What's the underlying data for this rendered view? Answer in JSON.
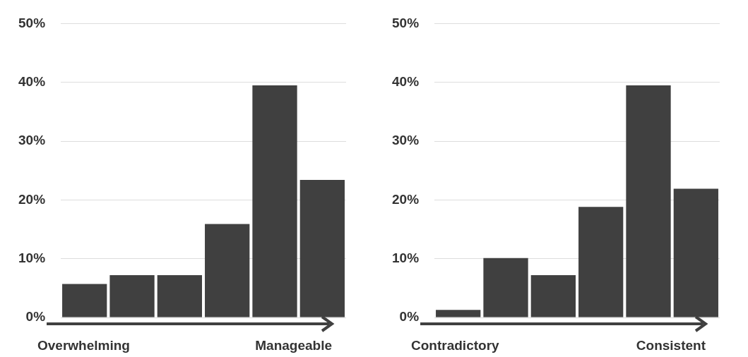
{
  "chart_data": [
    {
      "type": "bar",
      "categories": [
        null,
        null,
        null,
        null,
        null,
        null
      ],
      "values": [
        5.7,
        7.2,
        7.2,
        15.9,
        39.5,
        23.4
      ],
      "color": "#404040",
      "ylim": [
        0,
        50
      ],
      "yticks": [
        {
          "value": 0,
          "label": "0%"
        },
        {
          "value": 10,
          "label": "10%"
        },
        {
          "value": 20,
          "label": "20%"
        },
        {
          "value": 30,
          "label": "30%"
        },
        {
          "value": 40,
          "label": "40%"
        },
        {
          "value": 50,
          "label": "50%"
        }
      ],
      "grid": "y",
      "legend": false,
      "annotations": [
        "Overwhelming",
        "Manageable"
      ]
    },
    {
      "type": "bar",
      "categories": [
        null,
        null,
        null,
        null,
        null,
        null
      ],
      "values": [
        1.3,
        10.1,
        7.2,
        18.8,
        39.5,
        21.9
      ],
      "color": "#404040",
      "ylim": [
        0,
        50
      ],
      "yticks": [
        {
          "value": 0,
          "label": "0%"
        },
        {
          "value": 10,
          "label": "10%"
        },
        {
          "value": 20,
          "label": "20%"
        },
        {
          "value": 30,
          "label": "30%"
        },
        {
          "value": 40,
          "label": "40%"
        },
        {
          "value": 50,
          "label": "50%"
        }
      ],
      "grid": "y",
      "legend": false,
      "annotations": [
        "Contradictory",
        "Consistent"
      ]
    }
  ]
}
